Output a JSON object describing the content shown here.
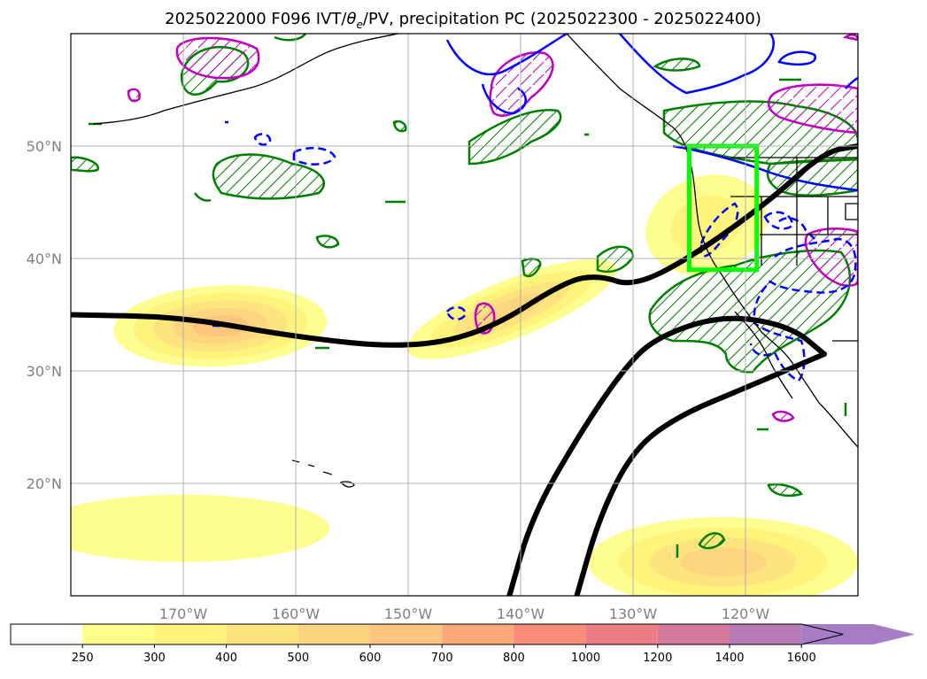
{
  "chart_data": {
    "type": "map",
    "title": "2025022000 F096 IVT/$\\theta_e$/PV, precipitation PC (2025022300 - 2025022400)",
    "title_prefix": "2025022000 F096 IVT/",
    "title_theta": "θ",
    "title_theta_sub": "e",
    "title_suffix": "/PV, precipitation PC (2025022300 - 2025022400)",
    "lon_range": [
      180,
      110
    ],
    "lat_range": [
      10,
      60
    ],
    "grid": true,
    "lon_ticks": [
      {
        "lon": 170,
        "label": "170°W"
      },
      {
        "lon": 160,
        "label": "160°W"
      },
      {
        "lon": 150,
        "label": "150°W"
      },
      {
        "lon": 140,
        "label": "140°W"
      },
      {
        "lon": 130,
        "label": "130°W"
      },
      {
        "lon": 120,
        "label": "120°W"
      }
    ],
    "lat_ticks": [
      {
        "lat": 50,
        "label": "50°N"
      },
      {
        "lat": 40,
        "label": "40°N"
      },
      {
        "lat": 30,
        "label": "30°N"
      },
      {
        "lat": 20,
        "label": "20°N"
      }
    ],
    "colorbar": {
      "levels": [
        "250",
        "300",
        "400",
        "500",
        "600",
        "700",
        "800",
        "1000",
        "1200",
        "1400",
        "1600"
      ],
      "colors": [
        "#fefe8a",
        "#fef27a",
        "#fee27e",
        "#fdd47e",
        "#fcc47c",
        "#fca878",
        "#f88c78",
        "#ee7c84",
        "#d4789c",
        "#b87ab8",
        "#a67cc4"
      ],
      "under_color": "#ffffff",
      "extend": "max"
    },
    "ivt_blobs": [
      {
        "lon": 166.7,
        "lat": 34,
        "rx": 9.5,
        "ry": 3.6,
        "rot": -3,
        "level": 4
      },
      {
        "lon": 140.8,
        "lat": 35.5,
        "rx": 10,
        "ry": 2.6,
        "rot": -22,
        "level": 3
      },
      {
        "lon": 123.5,
        "lat": 43,
        "rx": 5.5,
        "ry": 4.3,
        "rot": -20,
        "level": 1
      },
      {
        "lon": 122,
        "lat": 13,
        "rx": 12,
        "ry": 4,
        "rot": 0,
        "level": 3
      },
      {
        "lon": 170,
        "lat": 16,
        "rx": 13,
        "ry": 3,
        "rot": 0,
        "level": 0
      }
    ],
    "jet_axes": [
      {
        "name": "",
        "points": [
          [
            180,
            35
          ],
          [
            170,
            34.8
          ],
          [
            160,
            33
          ],
          [
            150,
            32
          ],
          [
            143,
            33.5
          ],
          [
            136,
            38
          ],
          [
            133,
            38.5
          ],
          [
            130,
            37.5
          ],
          [
            125,
            40
          ],
          [
            118,
            45
          ],
          [
            113,
            49.5
          ],
          [
            110,
            50
          ]
        ]
      },
      {
        "name": "",
        "points": [
          [
            141,
            10
          ],
          [
            139,
            17
          ],
          [
            135,
            24
          ],
          [
            131,
            30
          ],
          [
            128,
            33
          ],
          [
            122,
            35
          ],
          [
            116,
            34
          ],
          [
            113,
            31.5
          ]
        ]
      },
      {
        "name": "",
        "points": [
          [
            135,
            10
          ],
          [
            133,
            17
          ],
          [
            130,
            23
          ],
          [
            126,
            26
          ],
          [
            120,
            28.5
          ],
          [
            113,
            31.5
          ]
        ]
      }
    ],
    "highlight_box": {
      "lon_w": 125,
      "lon_e": 119,
      "lat_s": 39,
      "lat_n": 50,
      "color": "#00ff00"
    },
    "theta_e_contours": {
      "color": "#008000",
      "hatch": "diagonal"
    },
    "pv_contours": {
      "color": "#c000c0"
    },
    "precip_contours": {
      "color": "#0000ff"
    }
  }
}
